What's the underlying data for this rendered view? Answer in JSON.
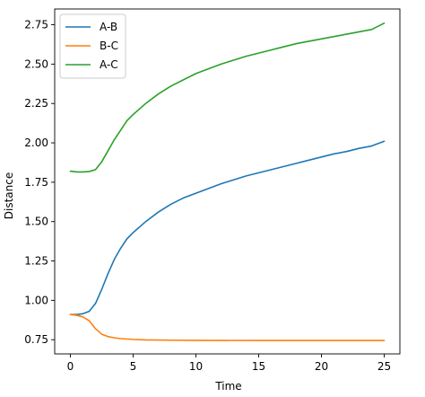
{
  "chart_data": {
    "type": "line",
    "title": "",
    "xlabel": "Time",
    "ylabel": "Distance",
    "xlim": [
      -1.25,
      26.25
    ],
    "ylim": [
      0.66,
      2.85
    ],
    "xticks": [
      0,
      5,
      10,
      15,
      20,
      25
    ],
    "xtick_labels": [
      "0",
      "5",
      "10",
      "15",
      "20",
      "25"
    ],
    "yticks": [
      0.75,
      1.0,
      1.25,
      1.5,
      1.75,
      2.0,
      2.25,
      2.5,
      2.75
    ],
    "ytick_labels": [
      "0.75",
      "1.00",
      "1.25",
      "1.50",
      "1.75",
      "2.00",
      "2.25",
      "2.50",
      "2.75"
    ],
    "grid": false,
    "legend_position": "top-left",
    "series": [
      {
        "name": "A-B",
        "color": "#1f77b4",
        "x": [
          0,
          0.5,
          1,
          1.5,
          2,
          2.5,
          3,
          3.5,
          4,
          4.5,
          5,
          6,
          7,
          8,
          9,
          10,
          11,
          12,
          13,
          14,
          15,
          16,
          17,
          18,
          19,
          20,
          21,
          22,
          23,
          24,
          25
        ],
        "y": [
          0.91,
          0.91,
          0.915,
          0.93,
          0.98,
          1.07,
          1.17,
          1.26,
          1.33,
          1.39,
          1.43,
          1.5,
          1.56,
          1.61,
          1.65,
          1.68,
          1.71,
          1.74,
          1.765,
          1.79,
          1.81,
          1.83,
          1.85,
          1.87,
          1.89,
          1.91,
          1.93,
          1.945,
          1.965,
          1.98,
          2.01
        ]
      },
      {
        "name": "B-C",
        "color": "#ff7f0e",
        "x": [
          0,
          0.5,
          1,
          1.5,
          2,
          2.5,
          3,
          3.5,
          4,
          5,
          6,
          8,
          10,
          15,
          20,
          25
        ],
        "y": [
          0.91,
          0.905,
          0.895,
          0.87,
          0.82,
          0.785,
          0.77,
          0.762,
          0.757,
          0.752,
          0.749,
          0.747,
          0.746,
          0.745,
          0.745,
          0.745
        ]
      },
      {
        "name": "A-C",
        "color": "#2ca02c",
        "x": [
          0,
          0.5,
          1,
          1.5,
          2,
          2.5,
          3,
          3.5,
          4,
          4.5,
          5,
          6,
          7,
          8,
          9,
          10,
          11,
          12,
          13,
          14,
          15,
          16,
          17,
          18,
          19,
          20,
          21,
          22,
          23,
          24,
          25
        ],
        "y": [
          1.82,
          1.815,
          1.815,
          1.818,
          1.83,
          1.88,
          1.95,
          2.02,
          2.08,
          2.14,
          2.18,
          2.25,
          2.31,
          2.36,
          2.4,
          2.44,
          2.47,
          2.5,
          2.525,
          2.55,
          2.57,
          2.59,
          2.61,
          2.63,
          2.645,
          2.66,
          2.675,
          2.69,
          2.705,
          2.72,
          2.76
        ]
      }
    ]
  }
}
